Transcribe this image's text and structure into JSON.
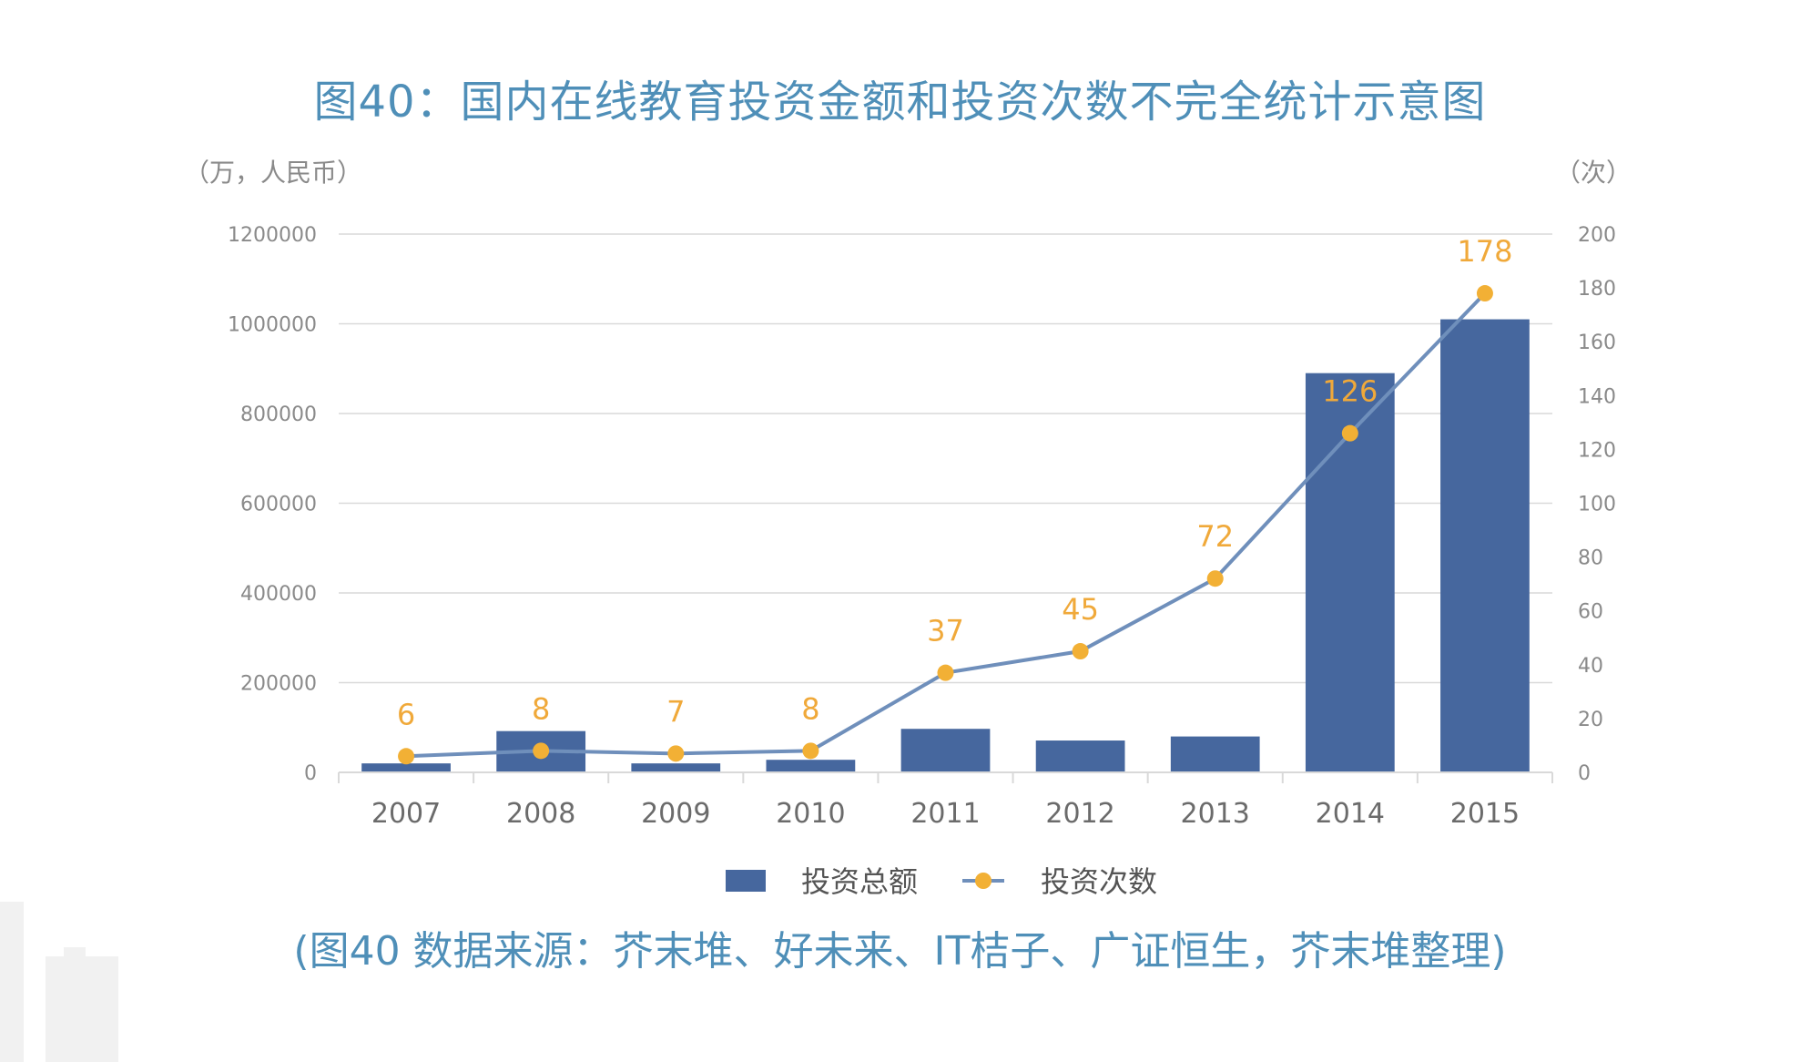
{
  "title": "图40：国内在线教育投资金额和投资次数不完全统计示意图",
  "left_axis_unit": "（万，人民币）",
  "right_axis_unit": "（次）",
  "source_note": "(图40 数据来源：芥末堆、好未来、IT桔子、广证恒生，芥末堆整理)",
  "colors": {
    "bar": "#46679e",
    "line": "#6f8fbb",
    "marker": "#f2b035",
    "value_label": "#f0a93a",
    "title": "#4f8fb8",
    "grid": "#d9d9d9",
    "tick": "#8a8a8a",
    "category": "#6b6b6b"
  },
  "chart_data": {
    "type": "bar",
    "title": "图40：国内在线教育投资金额和投资次数不完全统计示意图",
    "categories": [
      "2007",
      "2008",
      "2009",
      "2010",
      "2011",
      "2012",
      "2013",
      "2014",
      "2015"
    ],
    "series": [
      {
        "name": "投资总额",
        "type": "bar",
        "axis": "left",
        "values": [
          20000,
          92000,
          20000,
          28000,
          97000,
          71000,
          80000,
          890000,
          1010000
        ]
      },
      {
        "name": "投资次数",
        "type": "line",
        "axis": "right",
        "values": [
          6,
          8,
          7,
          8,
          37,
          45,
          72,
          126,
          178
        ],
        "labels": [
          "6",
          "8",
          "7",
          "8",
          "37",
          "45",
          "72",
          "126",
          "178"
        ]
      }
    ],
    "y_left": {
      "label": "（万，人民币）",
      "range": [
        0,
        1200000
      ],
      "ticks": [
        "0",
        "200000",
        "400000",
        "600000",
        "800000",
        "1000000",
        "1200000"
      ]
    },
    "y_right": {
      "label": "（次）",
      "range": [
        0,
        200
      ],
      "ticks": [
        "0",
        "20",
        "40",
        "60",
        "80",
        "100",
        "120",
        "140",
        "160",
        "180",
        "200"
      ]
    },
    "grid": true,
    "legend": {
      "position": "bottom-center",
      "items": [
        "投资总额",
        "投资次数"
      ]
    }
  }
}
